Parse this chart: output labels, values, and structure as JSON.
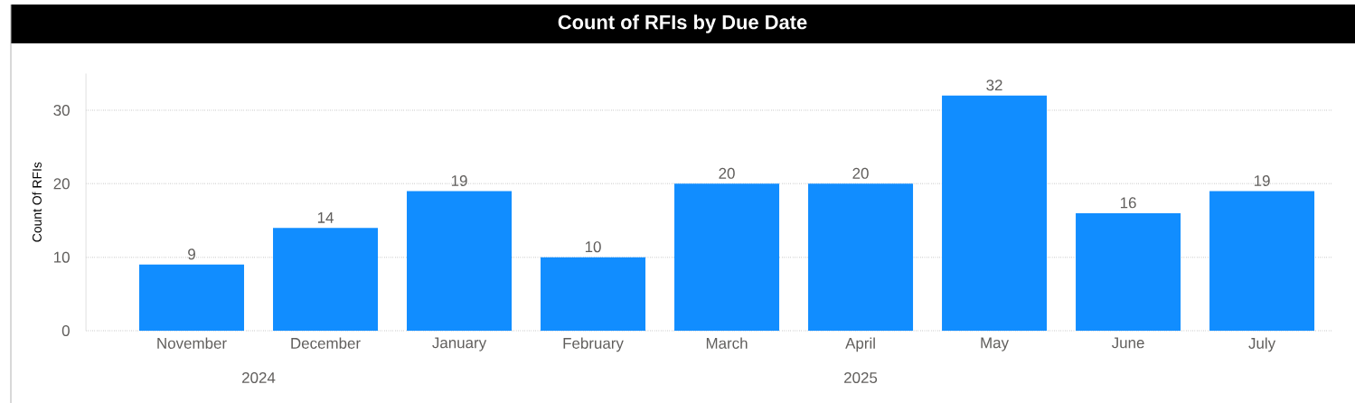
{
  "chart_data": {
    "type": "bar",
    "title": "Count of RFIs by Due Date",
    "ylabel": "Count Of RFIs",
    "categories": [
      "November",
      "December",
      "January",
      "February",
      "March",
      "April",
      "May",
      "June",
      "July"
    ],
    "values": [
      9,
      14,
      19,
      10,
      20,
      20,
      32,
      16,
      19
    ],
    "color": "#118dff",
    "ylim": [
      0,
      35
    ],
    "yticks": [
      0,
      10,
      20,
      30
    ],
    "grid": "y",
    "data_labels": true,
    "annotations": [
      "2024",
      "2025"
    ]
  }
}
